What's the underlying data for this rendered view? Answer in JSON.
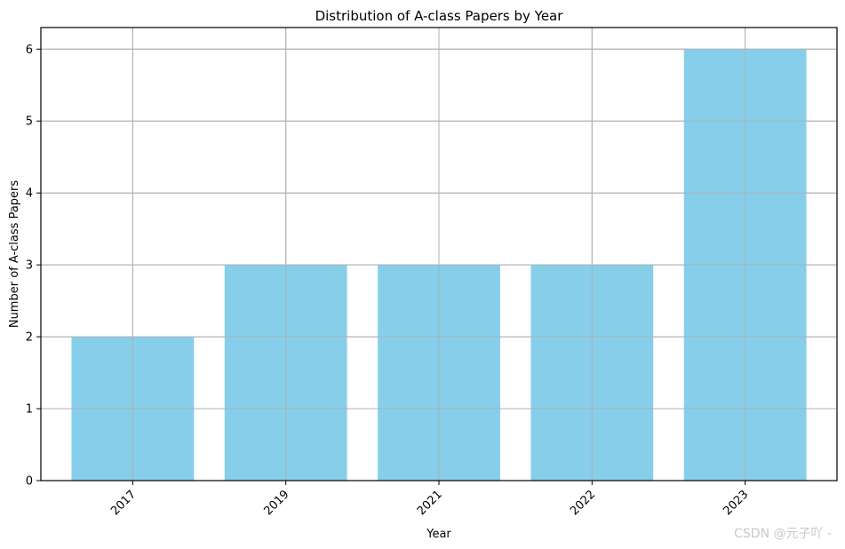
{
  "chart_data": {
    "type": "bar",
    "title": "Distribution of A-class Papers by Year",
    "xlabel": "Year",
    "ylabel": "Number of A-class Papers",
    "categories": [
      "2017",
      "2019",
      "2021",
      "2022",
      "2023"
    ],
    "values": [
      2,
      3,
      3,
      3,
      6
    ],
    "ylim": [
      0,
      6.3
    ],
    "yticks": [
      0,
      1,
      2,
      3,
      4,
      5,
      6
    ],
    "bar_color": "#87ceeb",
    "grid": true,
    "x_tick_rotation_deg": 45
  },
  "watermark": "CSDN @元子吖 -"
}
